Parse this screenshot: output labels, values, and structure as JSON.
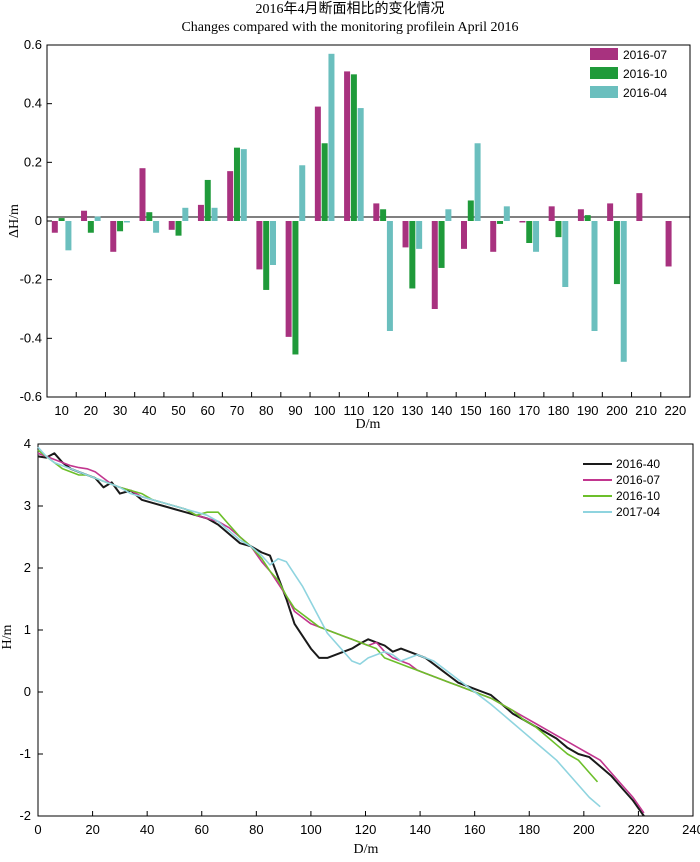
{
  "chart_data": [
    {
      "type": "bar",
      "title": "2016年4月断面相比的变化情况",
      "subtitle": "Changes compared with the monitoring profilein April 2016",
      "xlabel": "D/m",
      "ylabel": "ΔH/m",
      "ylim": [
        -0.6,
        0.6
      ],
      "yticks": [
        -0.6,
        -0.4,
        -0.2,
        0,
        0.2,
        0.4,
        0.6
      ],
      "ytick_labels": [
        "-0.6",
        "-0.4",
        "-0.2",
        "0",
        "0.2",
        "0.4",
        "0.6"
      ],
      "legend_position": "top-right",
      "categories": [
        "10",
        "20",
        "30",
        "40",
        "50",
        "60",
        "70",
        "80",
        "90",
        "100",
        "110",
        "120",
        "130",
        "140",
        "150",
        "160",
        "170",
        "180",
        "190",
        "200",
        "210",
        "220"
      ],
      "series": [
        {
          "name": "2016-07",
          "color": "#a8327f",
          "values": [
            -0.04,
            0.035,
            -0.105,
            0.18,
            -0.03,
            0.055,
            0.17,
            -0.165,
            -0.395,
            0.39,
            0.51,
            0.06,
            -0.09,
            -0.3,
            -0.095,
            -0.105,
            -0.005,
            0.05,
            0.04,
            0.06,
            0.095,
            -0.155
          ]
        },
        {
          "name": "2016-10",
          "color": "#1f9a3a",
          "values": [
            0.01,
            -0.04,
            -0.035,
            0.03,
            -0.05,
            0.14,
            0.25,
            -0.235,
            -0.455,
            0.265,
            0.5,
            0.04,
            -0.23,
            -0.16,
            0.07,
            -0.01,
            -0.075,
            -0.055,
            0.02,
            -0.215,
            0,
            0
          ]
        },
        {
          "name": "2016-04",
          "color": "#6bbfbe",
          "values": [
            -0.1,
            0.015,
            -0.005,
            -0.04,
            0.045,
            0.045,
            0.245,
            -0.15,
            0.19,
            0.57,
            0.385,
            -0.375,
            -0.095,
            0.04,
            0.265,
            0.05,
            -0.105,
            -0.225,
            -0.375,
            -0.48,
            0,
            0
          ]
        }
      ]
    },
    {
      "type": "line",
      "xlabel": "D/m",
      "ylabel": "H/m",
      "xlim": [
        0,
        240
      ],
      "ylim": [
        -2,
        4
      ],
      "xticks": [
        0,
        20,
        40,
        60,
        80,
        100,
        120,
        140,
        160,
        180,
        200,
        220,
        240
      ],
      "xtick_labels": [
        "0",
        "20",
        "40",
        "60",
        "80",
        "100",
        "120",
        "140",
        "160",
        "180",
        "200",
        "220",
        "240"
      ],
      "yticks": [
        -2,
        -1,
        0,
        1,
        2,
        3,
        4
      ],
      "ytick_labels": [
        "-2",
        "-1",
        "0",
        "1",
        "2",
        "3",
        "4"
      ],
      "legend_position": "top-right",
      "series": [
        {
          "name": "2016-40",
          "color": "#1a1a1a",
          "x": [
            0,
            3,
            6,
            9,
            12,
            15,
            18,
            21,
            24,
            27,
            30,
            34,
            38,
            42,
            46,
            50,
            54,
            58,
            62,
            66,
            70,
            74,
            78,
            82,
            85,
            88,
            91,
            94,
            97,
            100,
            103,
            106,
            109,
            112,
            115,
            118,
            121,
            124,
            127,
            130,
            133,
            136,
            139,
            142,
            145,
            148,
            151,
            154,
            157,
            160,
            163,
            166,
            170,
            174,
            178,
            182,
            186,
            190,
            194,
            198,
            202,
            206,
            210,
            214,
            218,
            222
          ],
          "y": [
            3.8,
            3.78,
            3.85,
            3.7,
            3.6,
            3.55,
            3.5,
            3.45,
            3.3,
            3.38,
            3.2,
            3.25,
            3.1,
            3.05,
            3.0,
            2.95,
            2.9,
            2.85,
            2.8,
            2.7,
            2.55,
            2.4,
            2.35,
            2.25,
            2.2,
            1.85,
            1.5,
            1.1,
            0.9,
            0.7,
            0.55,
            0.55,
            0.6,
            0.65,
            0.7,
            0.78,
            0.85,
            0.8,
            0.75,
            0.65,
            0.7,
            0.65,
            0.6,
            0.55,
            0.45,
            0.35,
            0.25,
            0.15,
            0.1,
            0.05,
            0.0,
            -0.05,
            -0.2,
            -0.35,
            -0.45,
            -0.55,
            -0.65,
            -0.75,
            -0.9,
            -1.0,
            -1.05,
            -1.2,
            -1.35,
            -1.55,
            -1.75,
            -2.0
          ]
        },
        {
          "name": "2016-07",
          "color": "#c2368f",
          "x": [
            0,
            3,
            6,
            9,
            12,
            15,
            18,
            21,
            24,
            27,
            30,
            34,
            38,
            42,
            46,
            50,
            54,
            58,
            62,
            66,
            70,
            74,
            78,
            82,
            85,
            88,
            91,
            94,
            97,
            100,
            103,
            106,
            109,
            112,
            115,
            118,
            121,
            124,
            127,
            130,
            133,
            136,
            139,
            142,
            145,
            148,
            151,
            154,
            157,
            160,
            163,
            166,
            170,
            174,
            178,
            182,
            186,
            190,
            194,
            198,
            202,
            206,
            210,
            214,
            218,
            222
          ],
          "y": [
            3.85,
            3.8,
            3.75,
            3.7,
            3.65,
            3.62,
            3.6,
            3.55,
            3.45,
            3.35,
            3.3,
            3.25,
            3.15,
            3.1,
            3.05,
            3.0,
            2.95,
            2.85,
            2.8,
            2.75,
            2.65,
            2.5,
            2.35,
            2.1,
            1.95,
            1.75,
            1.55,
            1.3,
            1.2,
            1.1,
            1.05,
            1.0,
            0.95,
            0.9,
            0.85,
            0.8,
            0.75,
            0.8,
            0.65,
            0.55,
            0.5,
            0.45,
            0.35,
            0.3,
            0.25,
            0.2,
            0.15,
            0.1,
            0.05,
            0.0,
            -0.05,
            -0.1,
            -0.2,
            -0.3,
            -0.4,
            -0.5,
            -0.6,
            -0.7,
            -0.8,
            -0.9,
            -1.0,
            -1.1,
            -1.3,
            -1.5,
            -1.7,
            -1.95
          ]
        },
        {
          "name": "2016-10",
          "color": "#6cbf2a",
          "x": [
            0,
            3,
            6,
            9,
            12,
            15,
            18,
            21,
            24,
            27,
            30,
            34,
            38,
            42,
            46,
            50,
            54,
            58,
            62,
            66,
            70,
            74,
            78,
            82,
            85,
            88,
            91,
            94,
            97,
            100,
            103,
            106,
            109,
            112,
            115,
            118,
            121,
            124,
            127,
            130,
            133,
            136,
            139,
            142,
            145,
            148,
            151,
            154,
            157,
            160,
            163,
            166,
            170,
            174,
            178,
            182,
            186,
            190,
            194,
            198,
            202,
            205
          ],
          "y": [
            3.9,
            3.8,
            3.7,
            3.6,
            3.55,
            3.5,
            3.5,
            3.45,
            3.4,
            3.35,
            3.3,
            3.25,
            3.2,
            3.1,
            3.05,
            3.0,
            2.95,
            2.85,
            2.9,
            2.9,
            2.7,
            2.5,
            2.35,
            2.15,
            1.95,
            1.8,
            1.55,
            1.35,
            1.25,
            1.15,
            1.05,
            1.0,
            0.95,
            0.9,
            0.85,
            0.8,
            0.75,
            0.7,
            0.55,
            0.5,
            0.45,
            0.4,
            0.35,
            0.3,
            0.25,
            0.2,
            0.15,
            0.1,
            0.05,
            0.0,
            -0.05,
            -0.1,
            -0.2,
            -0.3,
            -0.45,
            -0.55,
            -0.7,
            -0.85,
            -1.0,
            -1.1,
            -1.3,
            -1.45
          ]
        },
        {
          "name": "2017-04",
          "color": "#8fd4df",
          "x": [
            0,
            3,
            6,
            9,
            12,
            15,
            18,
            21,
            24,
            27,
            30,
            34,
            38,
            42,
            46,
            50,
            54,
            58,
            62,
            66,
            70,
            74,
            78,
            82,
            85,
            88,
            91,
            94,
            97,
            100,
            103,
            106,
            109,
            112,
            115,
            118,
            121,
            124,
            127,
            130,
            133,
            136,
            139,
            142,
            145,
            148,
            151,
            154,
            157,
            160,
            163,
            166,
            170,
            174,
            178,
            182,
            186,
            190,
            194,
            198,
            202,
            206
          ],
          "y": [
            3.95,
            3.8,
            3.7,
            3.65,
            3.6,
            3.55,
            3.5,
            3.45,
            3.4,
            3.35,
            3.3,
            3.2,
            3.15,
            3.1,
            3.05,
            3.0,
            2.95,
            2.9,
            2.85,
            2.75,
            2.6,
            2.45,
            2.35,
            2.2,
            2.05,
            2.15,
            2.1,
            1.9,
            1.7,
            1.45,
            1.2,
            0.95,
            0.8,
            0.65,
            0.5,
            0.45,
            0.55,
            0.6,
            0.65,
            0.6,
            0.5,
            0.55,
            0.6,
            0.55,
            0.5,
            0.4,
            0.3,
            0.2,
            0.1,
            0.0,
            -0.1,
            -0.2,
            -0.35,
            -0.5,
            -0.65,
            -0.8,
            -0.95,
            -1.1,
            -1.3,
            -1.5,
            -1.7,
            -1.85
          ]
        }
      ]
    }
  ]
}
